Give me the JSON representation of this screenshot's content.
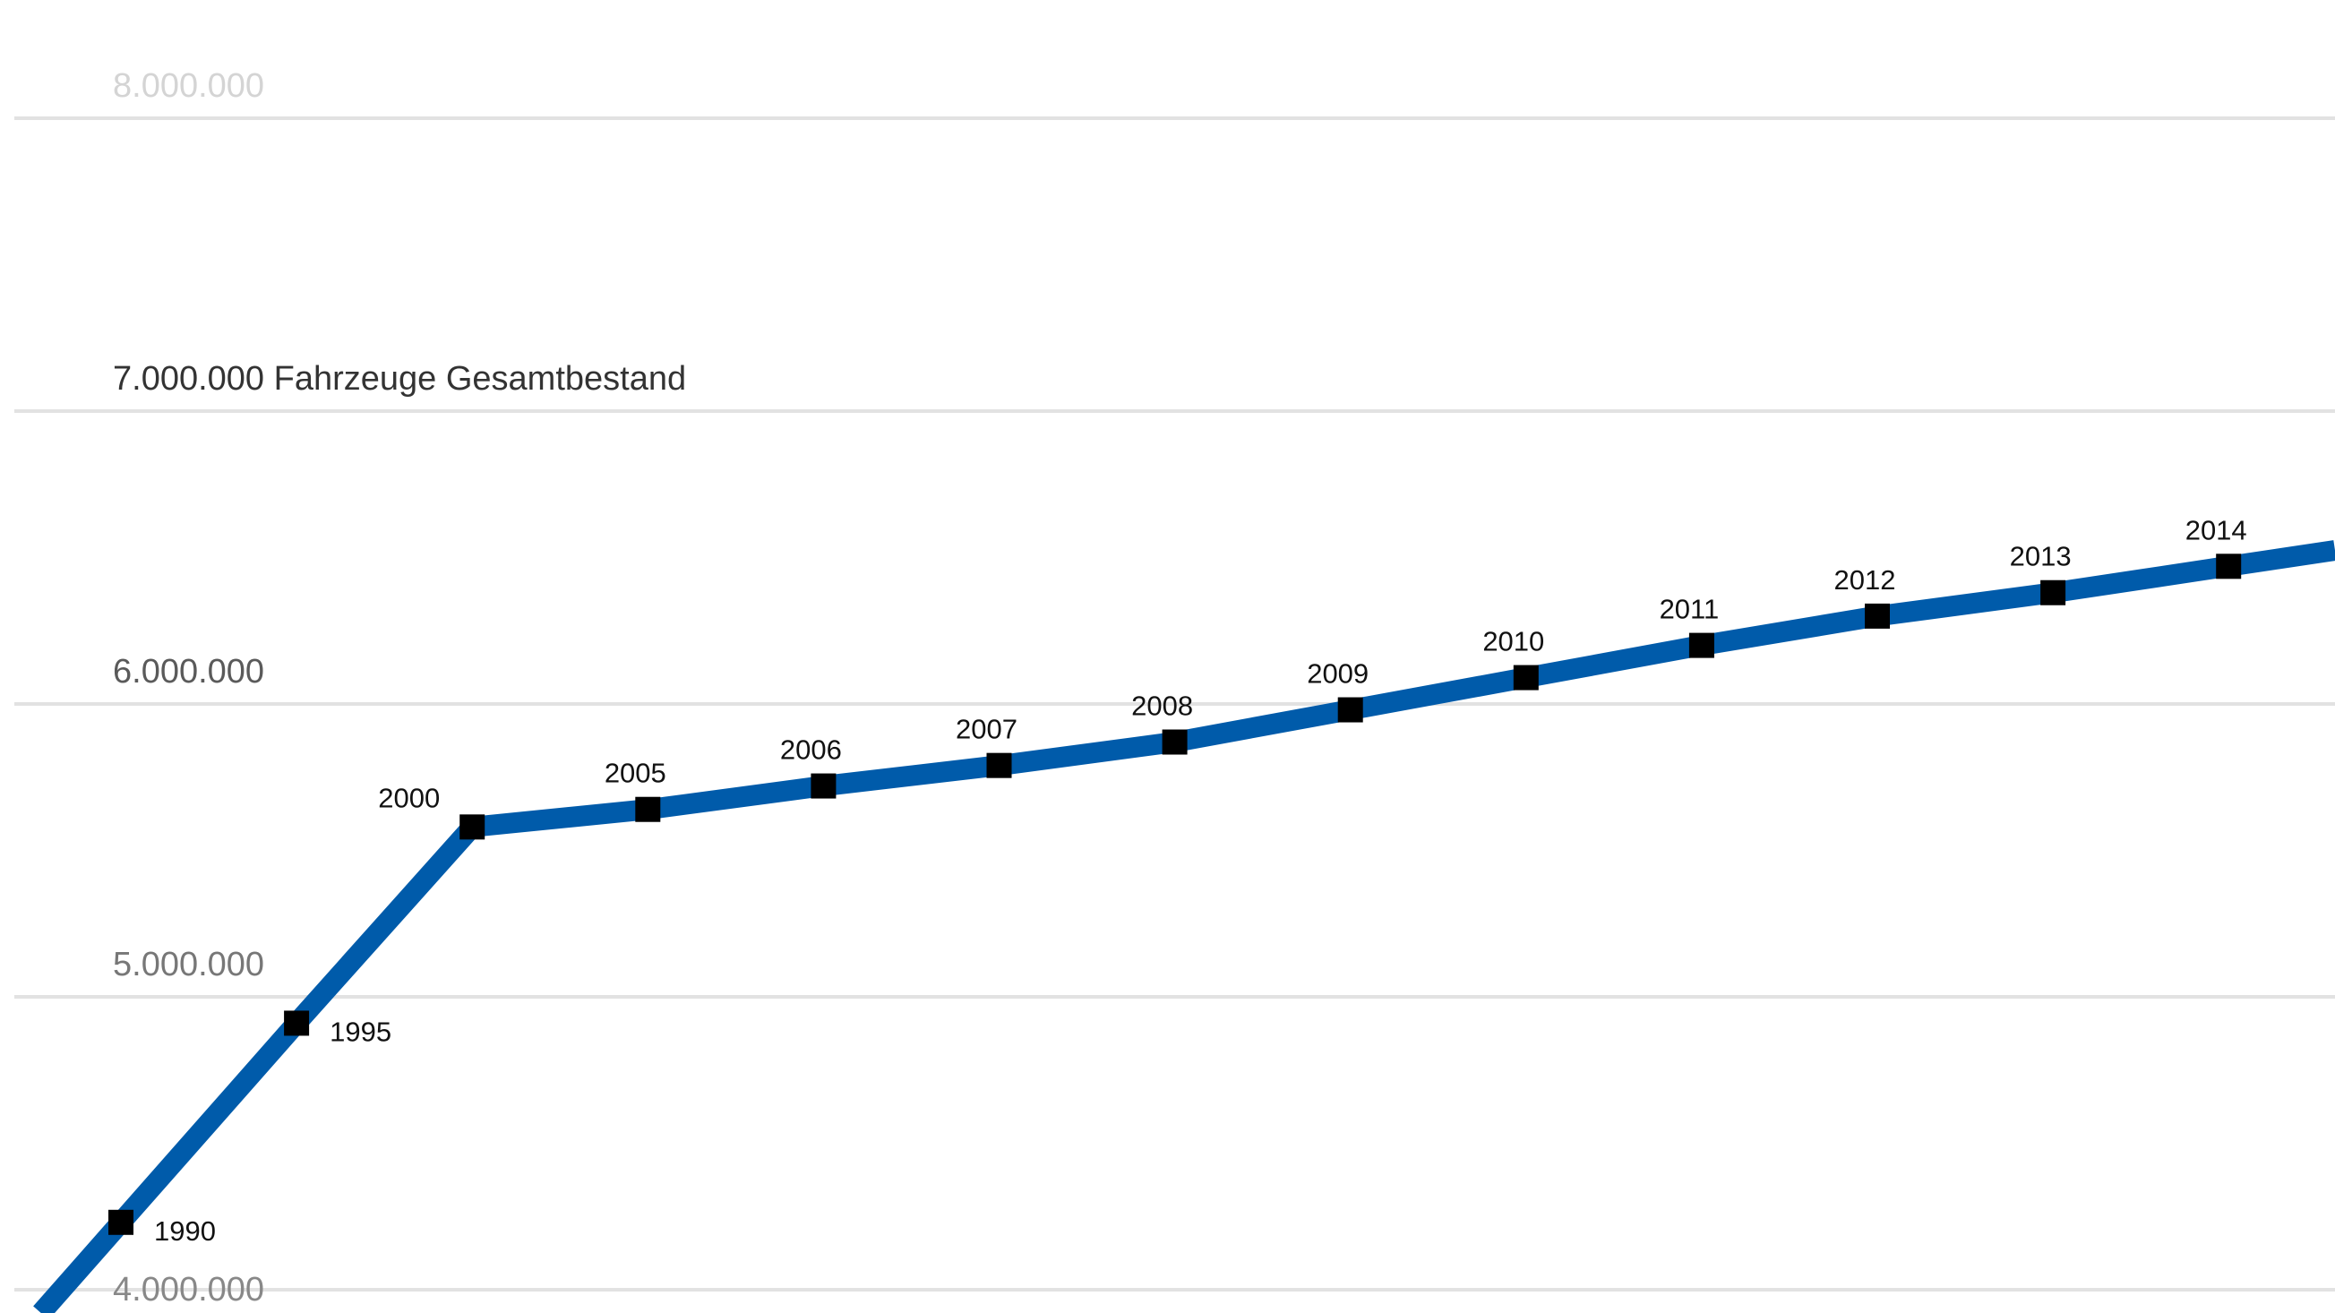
{
  "chart_data": {
    "type": "line",
    "title": "",
    "xlabel": "",
    "ylabel": "",
    "ylim": [
      4000000,
      8000000
    ],
    "y_ticks": [
      {
        "value": 8000000,
        "label": "8.000.000",
        "color": "#d4d4d4"
      },
      {
        "value": 7000000,
        "label": "7.000.000",
        "color": "#333333",
        "suffix": "Fahrzeuge Gesamtbestand"
      },
      {
        "value": 6000000,
        "label": "6.000.000",
        "color": "#5a5a5a"
      },
      {
        "value": 5000000,
        "label": "5.000.000",
        "color": "#777777"
      },
      {
        "value": 4000000,
        "label": "4.000.000",
        "color": "#888888"
      }
    ],
    "grid": true,
    "line_color": "#005BAA",
    "marker_color": "#000000",
    "gridline_color": "#e2e2e2",
    "series": [
      {
        "points": [
          {
            "x": "1990",
            "y": 4230000,
            "label_pos": "right"
          },
          {
            "x": "1995",
            "y": 4910000,
            "label_pos": "right"
          },
          {
            "x": "2000",
            "y": 5580000,
            "label_pos": "left"
          },
          {
            "x": "2005",
            "y": 5640000,
            "label_pos": "top"
          },
          {
            "x": "2006",
            "y": 5720000,
            "label_pos": "top"
          },
          {
            "x": "2007",
            "y": 5790000,
            "label_pos": "top"
          },
          {
            "x": "2008",
            "y": 5870000,
            "label_pos": "top"
          },
          {
            "x": "2009",
            "y": 5980000,
            "label_pos": "top"
          },
          {
            "x": "2010",
            "y": 6090000,
            "label_pos": "top"
          },
          {
            "x": "2011",
            "y": 6200000,
            "label_pos": "top"
          },
          {
            "x": "2012",
            "y": 6300000,
            "label_pos": "top"
          },
          {
            "x": "2013",
            "y": 6380000,
            "label_pos": "top"
          },
          {
            "x": "2014",
            "y": 6470000,
            "label_pos": "top"
          }
        ]
      }
    ]
  }
}
